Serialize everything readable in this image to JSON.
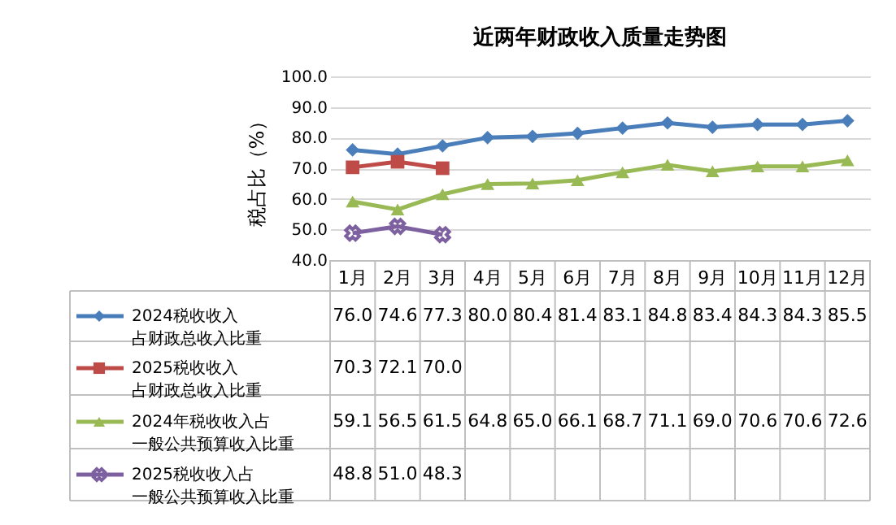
{
  "chart_data": {
    "type": "line",
    "title": "近两年财政收入质量走势图",
    "ylabel": "税占比（%）",
    "categories": [
      "1月",
      "2月",
      "3月",
      "4月",
      "5月",
      "6月",
      "7月",
      "8月",
      "9月",
      "10月",
      "11月",
      "12月"
    ],
    "series": [
      {
        "name": "2024税收收入占财政总收入比重",
        "color": "#4a7ebb",
        "marker": "diamond",
        "values": [
          76.0,
          74.6,
          77.3,
          80.0,
          80.4,
          81.4,
          83.1,
          84.8,
          83.4,
          84.3,
          84.3,
          85.5
        ],
        "value_labels": [
          "76.0",
          "74.6",
          "77.3",
          "80.0",
          "80.4",
          "81.4",
          "83.1",
          "84.8",
          "83.4",
          "84.3",
          "84.3",
          "85.5"
        ]
      },
      {
        "name": "2025税收收入占财政总收入比重",
        "color": "#be4b48",
        "marker": "square",
        "values": [
          70.3,
          72.1,
          70.0,
          null,
          null,
          null,
          null,
          null,
          null,
          null,
          null,
          null
        ],
        "value_labels": [
          "70.3",
          "72.1",
          "70.0",
          null,
          null,
          null,
          null,
          null,
          null,
          null,
          null,
          null
        ]
      },
      {
        "name": "2024年税收收入占一般公共预算收入比重",
        "color": "#98b954",
        "marker": "triangle",
        "values": [
          59.1,
          56.5,
          61.5,
          64.8,
          65.0,
          66.1,
          68.7,
          71.1,
          69.0,
          70.6,
          70.6,
          72.6
        ],
        "value_labels": [
          "59.1",
          "56.5",
          "61.5",
          "64.8",
          "65.0",
          "66.1",
          "68.7",
          "71.1",
          "69.0",
          "70.6",
          "70.6",
          "72.6"
        ]
      },
      {
        "name": "2025税收收入占一般公共预算收入比重",
        "color": "#7d60a0",
        "marker": "cross",
        "values": [
          48.8,
          51.0,
          48.3,
          null,
          null,
          null,
          null,
          null,
          null,
          null,
          null,
          null
        ],
        "value_labels": [
          "48.8",
          "51.0",
          "48.3",
          null,
          null,
          null,
          null,
          null,
          null,
          null,
          null,
          null
        ]
      }
    ],
    "ylim": [
      40,
      100
    ],
    "yticks": [
      {
        "value": 40,
        "label": "40.0"
      },
      {
        "value": 50,
        "label": "50.0"
      },
      {
        "value": 60,
        "label": "60.0"
      },
      {
        "value": 70,
        "label": "70.0"
      },
      {
        "value": 80,
        "label": "80.0"
      },
      {
        "value": 90,
        "label": "90.0"
      },
      {
        "value": 100,
        "label": "100.0"
      }
    ],
    "grid": "y",
    "legend": "bottom left",
    "line_style": "solid"
  }
}
